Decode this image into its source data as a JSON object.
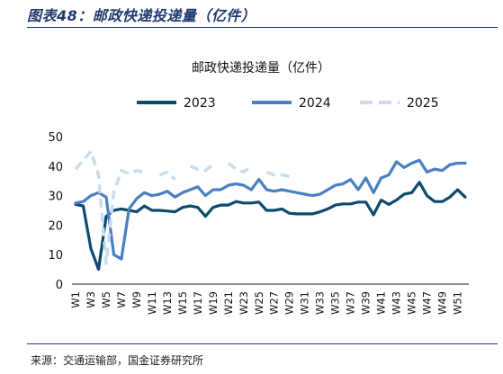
{
  "figure": {
    "title": "图表48：邮政快递投递量（亿件）",
    "source": "来源：交通运输部，国金证券研究所"
  },
  "chart_data": {
    "type": "line",
    "title": "邮政快递投递量（亿件）",
    "xlabel": "",
    "ylabel": "",
    "ylim": [
      0,
      50
    ],
    "yticks": [
      0,
      10,
      20,
      30,
      40,
      50
    ],
    "grid": false,
    "legend_position": "top",
    "x": [
      "W1",
      "W2",
      "W3",
      "W4",
      "W5",
      "W6",
      "W7",
      "W8",
      "W9",
      "W10",
      "W11",
      "W12",
      "W13",
      "W14",
      "W15",
      "W16",
      "W17",
      "W18",
      "W19",
      "W20",
      "W21",
      "W22",
      "W23",
      "W24",
      "W25",
      "W26",
      "W27",
      "W28",
      "W29",
      "W30",
      "W31",
      "W32",
      "W33",
      "W34",
      "W35",
      "W36",
      "W37",
      "W38",
      "W39",
      "W40",
      "W41",
      "W42",
      "W43",
      "W44",
      "W45",
      "W46",
      "W47",
      "W48",
      "W49",
      "W50",
      "W51",
      "W52"
    ],
    "xtick_labels": [
      "W1",
      "W3",
      "W5",
      "W7",
      "W9",
      "W11",
      "W13",
      "W15",
      "W17",
      "W19",
      "W21",
      "W23",
      "W25",
      "W27",
      "W29",
      "W31",
      "W33",
      "W35",
      "W37",
      "W39",
      "W41",
      "W43",
      "W45",
      "W47",
      "W49",
      "W51"
    ],
    "series": [
      {
        "name": "2023",
        "color": "#0c4a6e",
        "style": "solid",
        "values": [
          27,
          26.5,
          12,
          5,
          23,
          25,
          25.5,
          25,
          24.5,
          26.5,
          25,
          25,
          24.8,
          24.5,
          26,
          26.5,
          26,
          23,
          26,
          26.8,
          26.8,
          28,
          27.5,
          27.5,
          27.8,
          25,
          25,
          25.5,
          24,
          23.8,
          23.8,
          23.8,
          24.5,
          25.5,
          26.8,
          27.2,
          27.2,
          27.8,
          27.8,
          23.5,
          28.5,
          27,
          28.5,
          30.5,
          31,
          34.5,
          30,
          28,
          28,
          29.5,
          32,
          29.5
        ]
      },
      {
        "name": "2024",
        "color": "#4a7fc0",
        "style": "solid",
        "values": [
          27.5,
          28,
          30,
          31,
          29.5,
          10,
          8.5,
          25.5,
          29,
          31,
          30,
          30.5,
          31.5,
          29.5,
          31,
          32,
          33,
          30,
          32,
          32,
          33.5,
          34,
          33.5,
          32,
          35.5,
          32,
          31.5,
          32,
          31.5,
          31,
          30.5,
          30,
          30.5,
          32,
          33.5,
          34,
          35.5,
          32,
          36,
          31,
          36,
          37,
          41.5,
          39.5,
          41,
          42,
          38,
          39,
          38.5,
          40.5,
          41,
          41
        ]
      },
      {
        "name": "2025",
        "color": "#c9dcef",
        "style": "dashed",
        "values": [
          39,
          42,
          45,
          37,
          7,
          31,
          38.5,
          37.5,
          38.5,
          38,
          null,
          37,
          38,
          35.5,
          null,
          40,
          39,
          38.5,
          40.5,
          null,
          41,
          39,
          38,
          40,
          null,
          38,
          37,
          37,
          36.5,
          null,
          null,
          null,
          null,
          null,
          null,
          null,
          null,
          null,
          null,
          null,
          null,
          null,
          null,
          null,
          null,
          null,
          null,
          null,
          null,
          null,
          null,
          null
        ]
      }
    ]
  }
}
